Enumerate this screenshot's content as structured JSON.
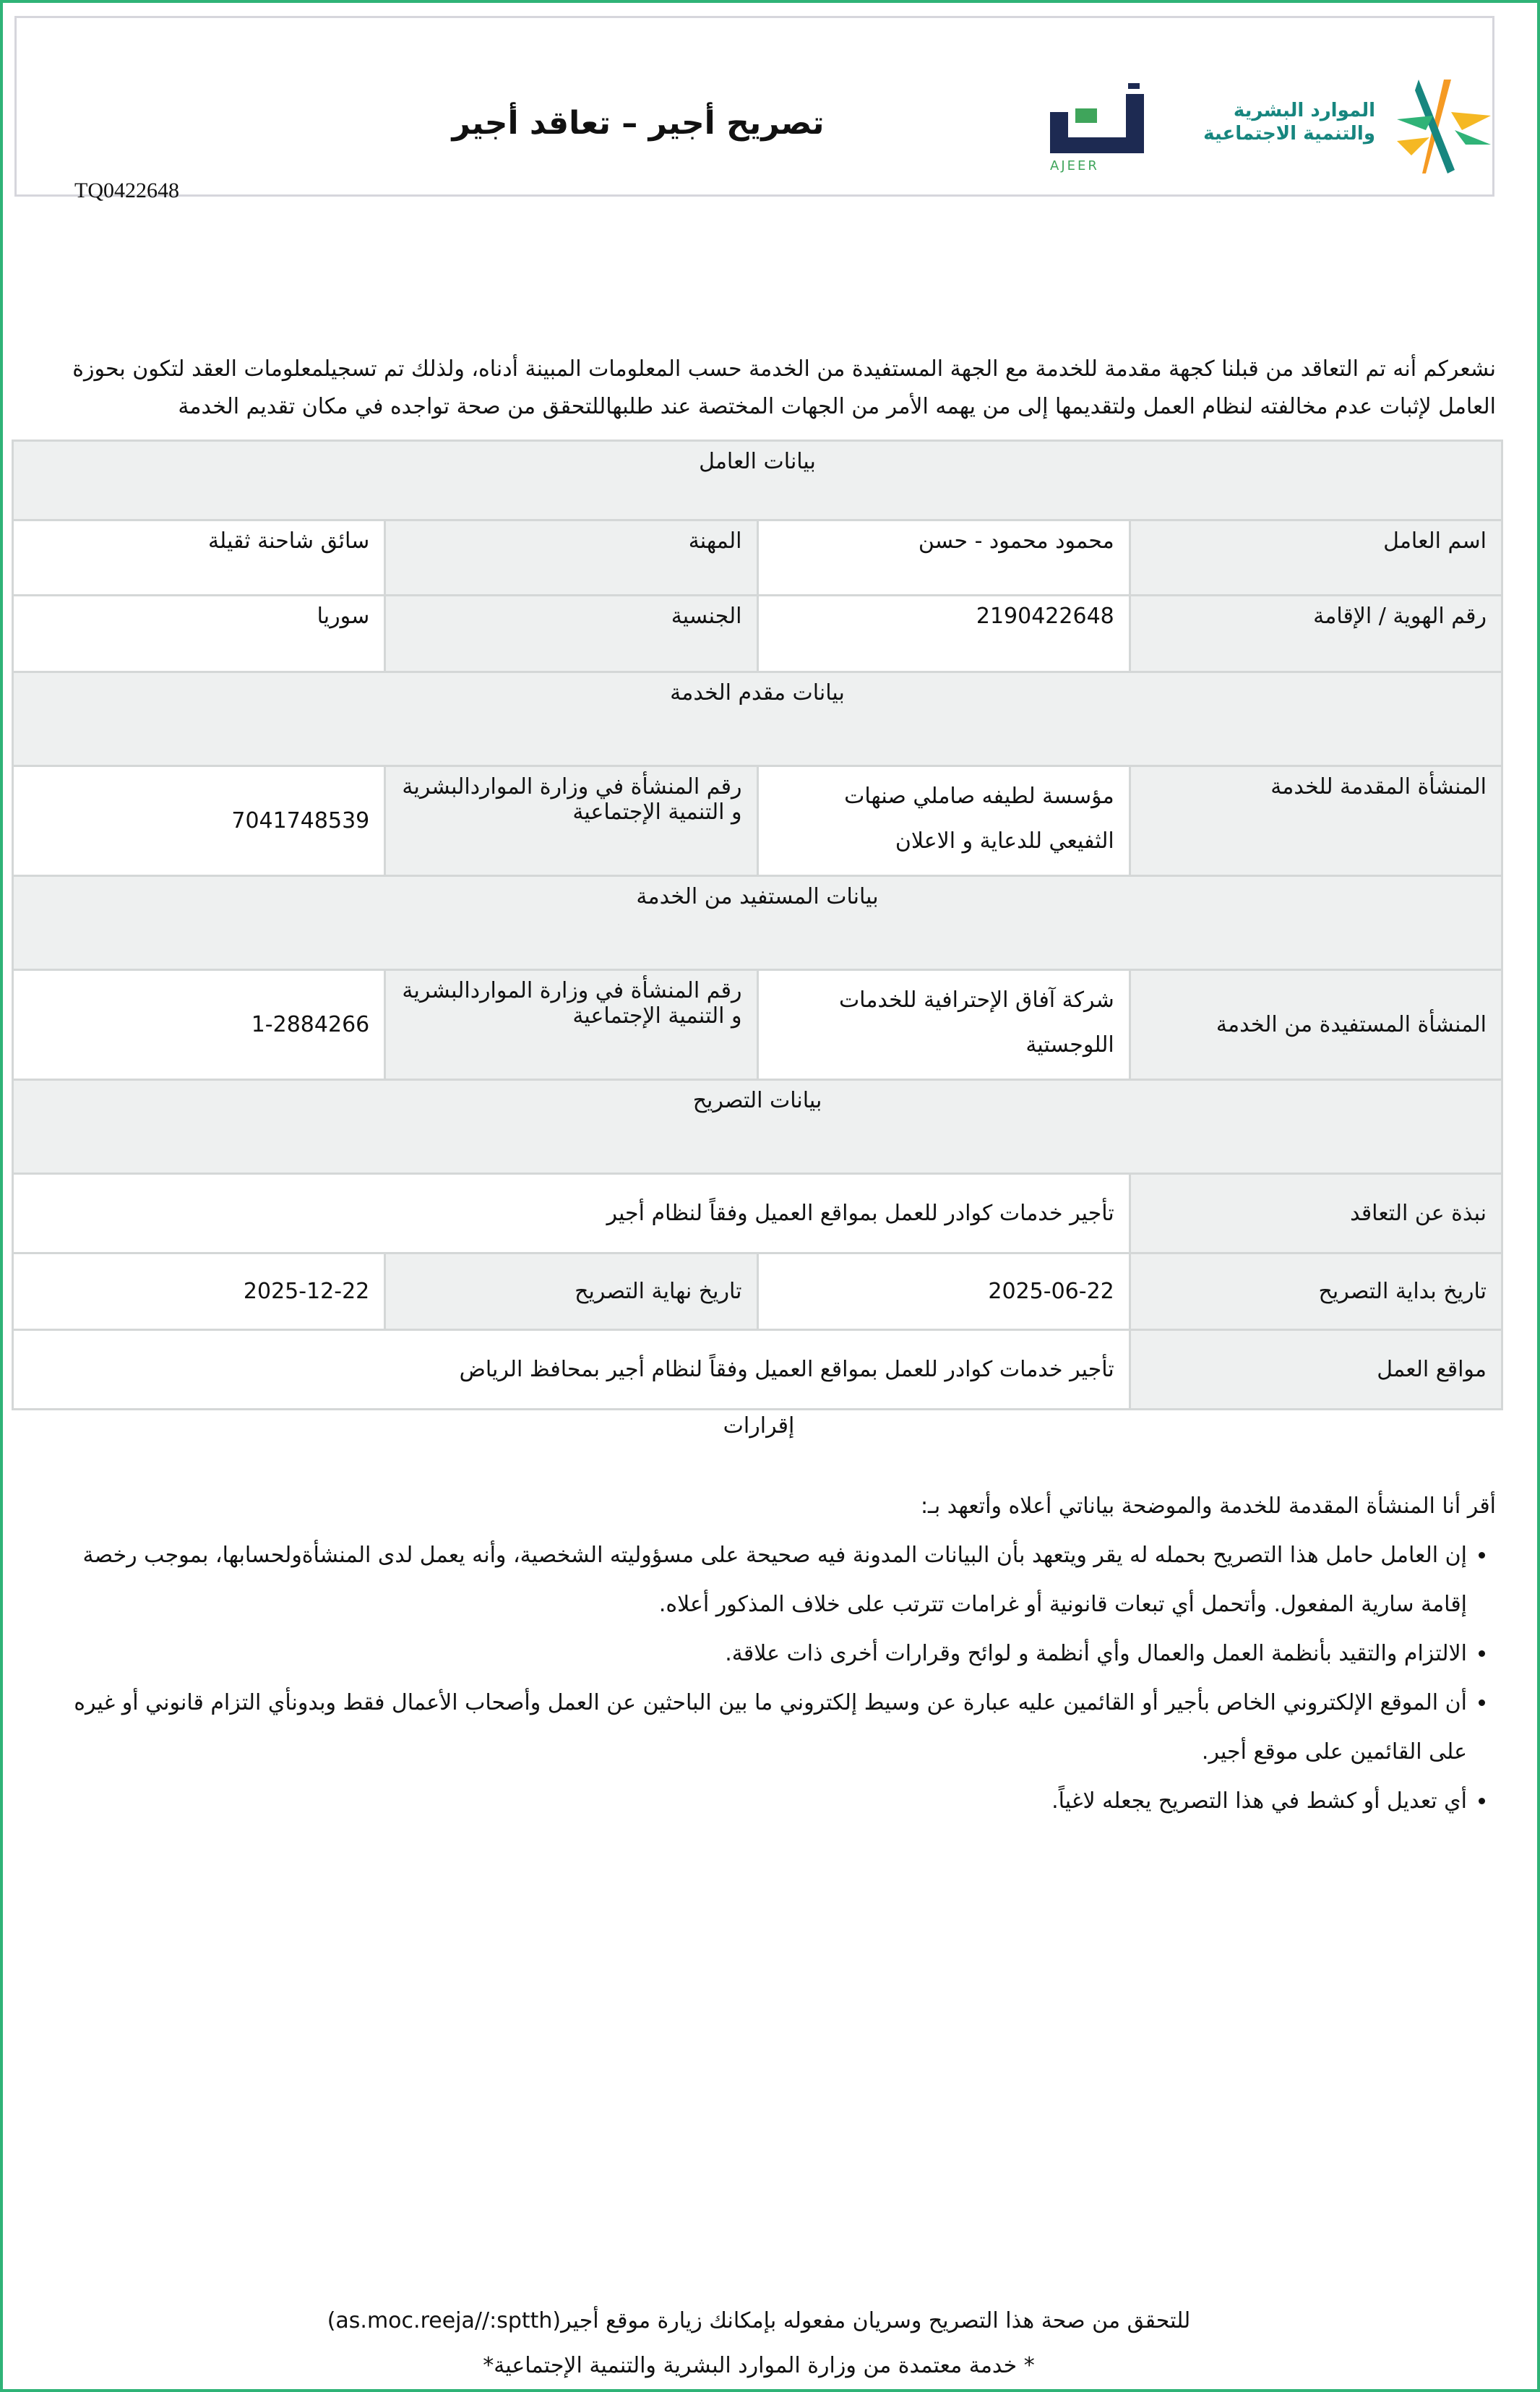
{
  "header": {
    "title": "تصريح أجير –  تعاقد أجير",
    "reference": "TQ0422648",
    "ajeer_logo_text": "أجير",
    "ajeer_logo_latin": "AJEER",
    "ministry_logo_line1": "الموارد البشرية",
    "ministry_logo_line2": "والتنمية الاجتماعية",
    "colors": {
      "green": "#2fb377",
      "navy": "#1d2a52",
      "orange": "#f5a623",
      "teal": "#17867f"
    }
  },
  "intro": "نشعركم أنه تم التعاقد من قبلنا كجهة مقدمة للخدمة مع الجهة المستفيدة من الخدمة حسب المعلومات المبينة أدناه، ولذلك تم تسجيلمعلومات العقد لتكون بحوزة العامل لإثبات عدم مخالفته لنظام العمل ولتقديمها إلى من يهمه الأمر من الجهات المختصة عند طلبهاللتحقق من صحة تواجده في مكان تقديم الخدمة",
  "worker": {
    "section_title": "بيانات العامل",
    "name_label": "اسم العامل",
    "name_value": "محمود محمود - حسن",
    "occupation_label": "المهنة",
    "occupation_value": "سائق شاحنة ثقيلة",
    "id_label": "رقم الهوية / الإقامة",
    "id_value": "2190422648",
    "nationality_label": "الجنسية",
    "nationality_value": "سوريا"
  },
  "provider": {
    "section_title": "بيانات مقدم الخدمة",
    "org_label": "المنشأة المقدمة للخدمة",
    "org_value": "مؤسسة لطيفه صاملي صنهات الثفيعي للدعاية و الاعلان",
    "reg_label": "رقم المنشأة في وزارة المواردالبشرية و التنمية الإجتماعية",
    "reg_value": "7041748539"
  },
  "beneficiary": {
    "section_title": "بيانات المستفيد من الخدمة",
    "org_label": "المنشأة المستفيدة من الخدمة",
    "org_value": "شركة آفاق الإحترافية للخدمات اللوجستية",
    "reg_label": "رقم المنشأة في وزارة المواردالبشرية و التنمية الإجتماعية",
    "reg_value": "1-2884266"
  },
  "permit": {
    "section_title": "بيانات التصريح",
    "summary_label": "نبذة عن التعاقد",
    "summary_value": "تأجير خدمات كوادر للعمل بمواقع العميل وفقاً لنظام أجير",
    "start_label": "تاريخ بداية التصريح",
    "start_value": "2025-06-22",
    "end_label": "تاريخ نهاية التصريح",
    "end_value": "2025-12-22",
    "locations_label": "مواقع العمل",
    "locations_value": "تأجير خدمات كوادر للعمل بمواقع العميل وفقاً لنظام أجير بمحافظ الرياض"
  },
  "declarations": {
    "title": "إقرارات",
    "lead": "أقر أنا المنشأة المقدمة للخدمة والموضحة بياناتي أعلاه وأتعهد بـ:",
    "items": [
      "إن العامل حامل هذا التصريح بحمله له يقر ويتعهد بأن البيانات المدونة فيه صحيحة على مسؤوليته الشخصية، وأنه يعمل لدى المنشأةولحسابها، بموجب رخصة إقامة سارية المفعول. وأتحمل أي تبعات قانونية أو غرامات تترتب على خلاف المذكور أعلاه.",
      "الالتزام والتقيد بأنظمة العمل والعمال وأي أنظمة و لوائح وقرارات أخرى ذات علاقة.",
      "أن الموقع الإلكتروني الخاص بأجير أو القائمين عليه عبارة عن وسيط إلكتروني ما بين الباحثين عن العمل وأصحاب الأعمال فقط وبدونأي التزام قانوني أو غيره على القائمين على موقع أجير.",
      "أي تعديل أو كشط في هذا التصريح يجعله لاغياً."
    ]
  },
  "footer": {
    "verify": "للتحقق من صحة هذا التصريح وسريان مفعوله بإمكانك زيارة موقع أجير(as.moc.reeja//:sptth)",
    "approved": "* خدمة معتمدة من وزارة الموارد البشرية والتنمية الإجتماعية*"
  }
}
